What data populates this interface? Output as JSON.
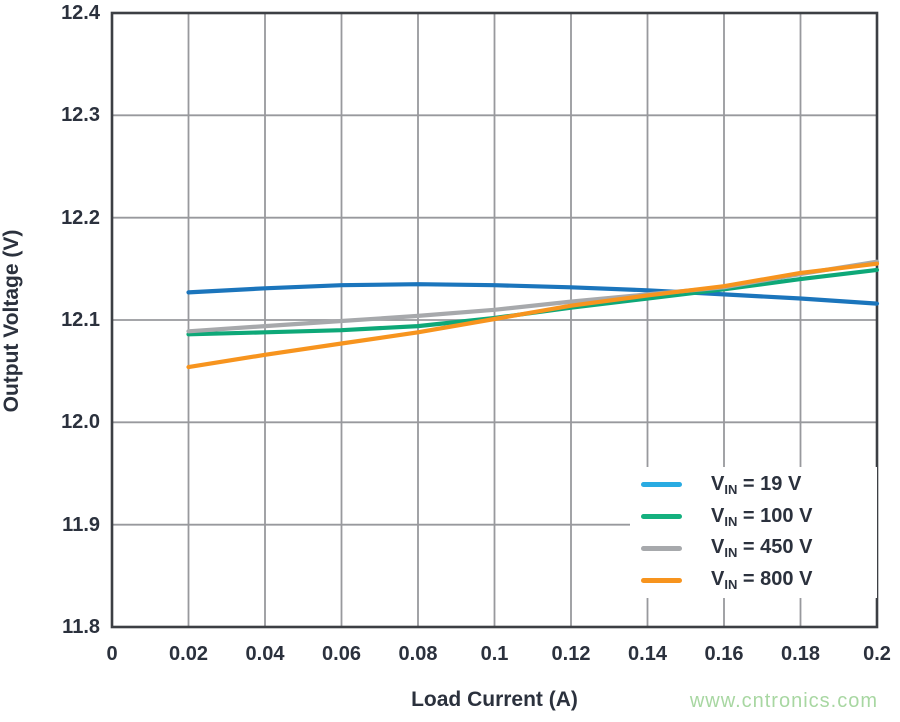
{
  "chart_data": {
    "type": "line",
    "title": "",
    "xlabel": "Load Current (A)",
    "ylabel": "Output Voltage (V)",
    "xlim": [
      0,
      0.2
    ],
    "ylim": [
      11.8,
      12.4
    ],
    "grid": true,
    "legend_position": "inside-bottom-right",
    "x_ticks": [
      "0",
      "0.02",
      "0.04",
      "0.06",
      "0.08",
      "0.1",
      "0.12",
      "0.14",
      "0.16",
      "0.18",
      "0.2"
    ],
    "x_tick_values": [
      0,
      0.02,
      0.04,
      0.06,
      0.08,
      0.1,
      0.12,
      0.14,
      0.16,
      0.18,
      0.2
    ],
    "y_ticks": [
      "12.4",
      "12.3",
      "12.2",
      "12.1",
      "12.0",
      "11.9",
      "11.8"
    ],
    "y_tick_values": [
      12.4,
      12.3,
      12.2,
      12.1,
      12.0,
      11.9,
      11.8
    ],
    "x": [
      0.02,
      0.04,
      0.06,
      0.08,
      0.1,
      0.12,
      0.14,
      0.16,
      0.18,
      0.2
    ],
    "series": [
      {
        "name": "VIN = 19 V",
        "legend": {
          "symbol": "V",
          "sub": "IN",
          "rest": " = 19 V"
        },
        "color": "#1B75BC",
        "legend_color": "#29ABE2",
        "values": [
          12.127,
          12.131,
          12.134,
          12.135,
          12.134,
          12.132,
          12.129,
          12.125,
          12.121,
          12.116
        ]
      },
      {
        "name": "VIN = 100 V",
        "legend": {
          "symbol": "V",
          "sub": "IN",
          "rest": " = 100 V"
        },
        "color": "#0EA878",
        "legend_color": "#14B07E",
        "values": [
          12.086,
          12.088,
          12.09,
          12.094,
          12.102,
          12.112,
          12.121,
          12.13,
          12.14,
          12.149
        ]
      },
      {
        "name": "VIN = 450 V",
        "legend": {
          "symbol": "V",
          "sub": "IN",
          "rest": " = 450 V"
        },
        "color": "#A7A9AC",
        "legend_color": "#A7A9AC",
        "values": [
          12.089,
          12.094,
          12.099,
          12.104,
          12.11,
          12.118,
          12.125,
          12.132,
          12.145,
          12.157
        ]
      },
      {
        "name": "VIN = 800 V",
        "legend": {
          "symbol": "V",
          "sub": "IN",
          "rest": " = 800 V"
        },
        "color": "#F7941E",
        "legend_color": "#F7941E",
        "values": [
          12.054,
          12.066,
          12.077,
          12.088,
          12.101,
          12.114,
          12.124,
          12.133,
          12.146,
          12.155
        ]
      }
    ]
  },
  "watermark": {
    "text": "www.cntronics.com",
    "color": "#A8D7A2"
  },
  "colors": {
    "grid": "#98999D",
    "border": "#3C3F44",
    "text": "#2B313D",
    "background": "#ffffff"
  }
}
